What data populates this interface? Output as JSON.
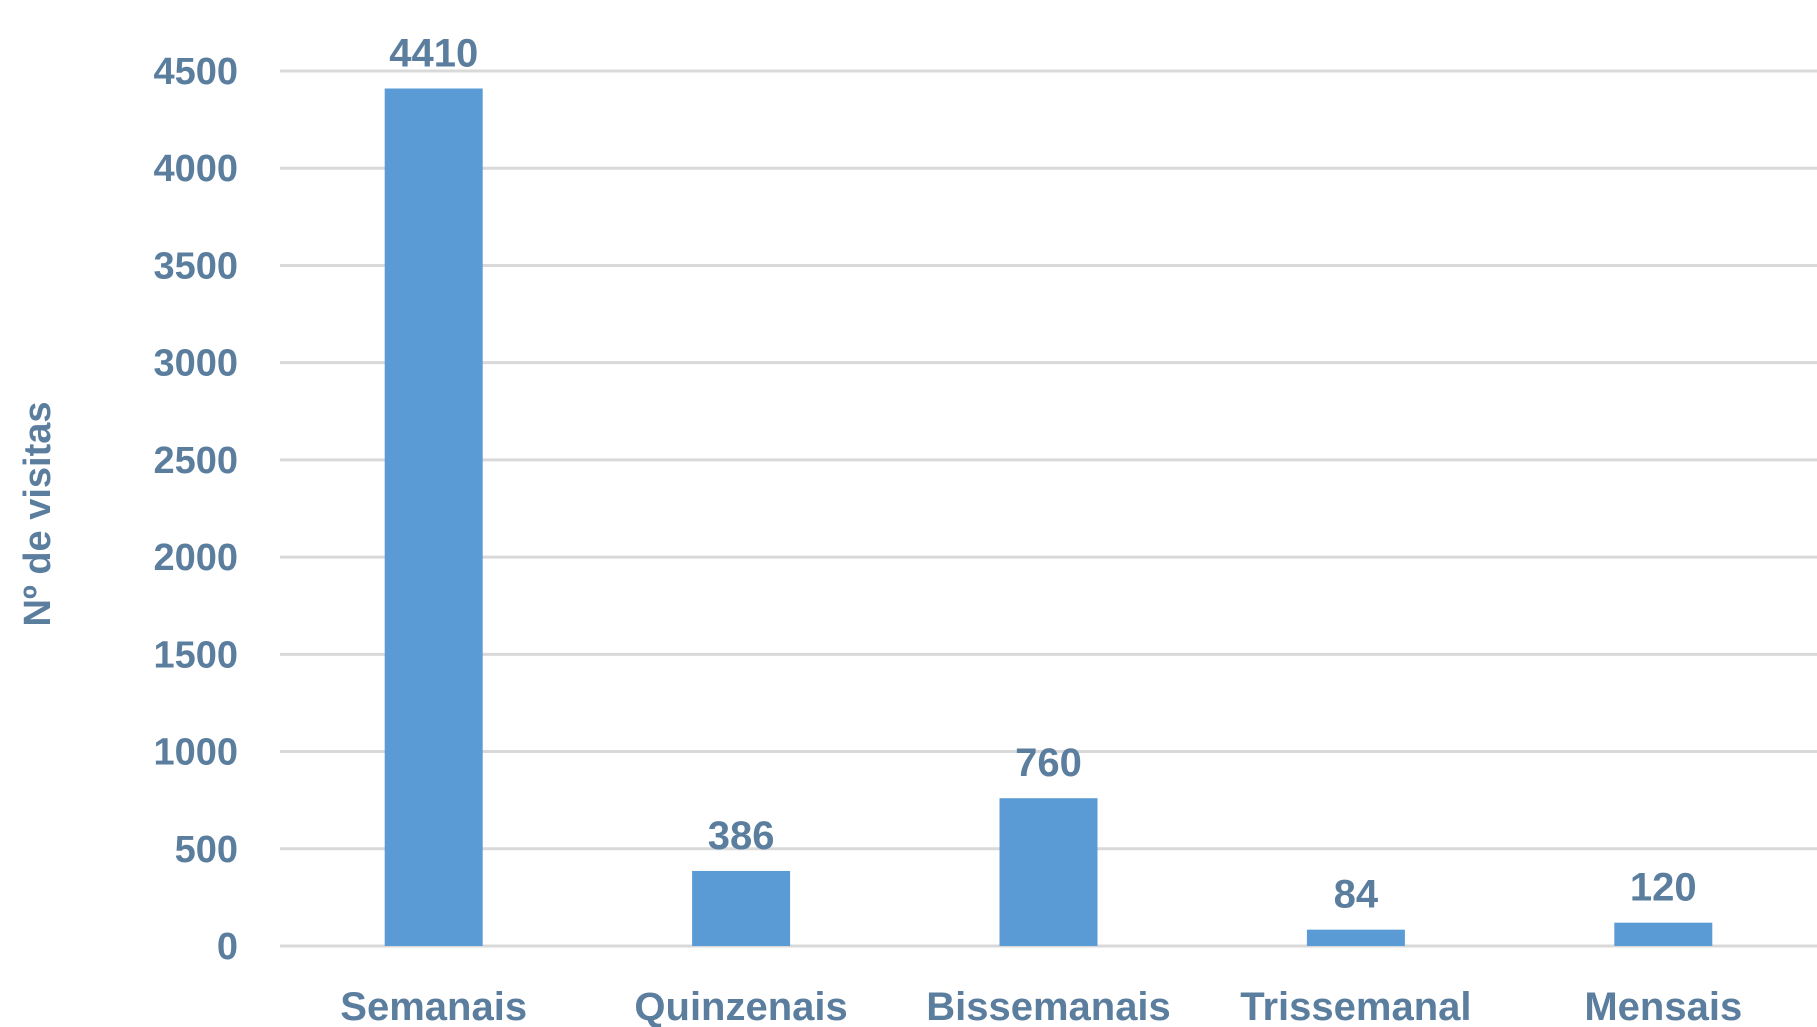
{
  "chart_data": {
    "type": "bar",
    "categories": [
      "Semanais",
      "Quinzenais",
      "Bissemanais",
      "Trissemanal",
      "Mensais"
    ],
    "values": [
      4410,
      386,
      760,
      84,
      120
    ],
    "data_labels": [
      "4410",
      "386",
      "760",
      "84",
      "120"
    ],
    "ylabel": "Nº de visitas",
    "xlabel": "",
    "ylim": [
      0,
      4500
    ],
    "yticks": [
      0,
      500,
      1000,
      1500,
      2000,
      2500,
      3000,
      3500,
      4000,
      4500
    ],
    "ytick_labels": [
      "0",
      "500",
      "1000",
      "1500",
      "2000",
      "2500",
      "3000",
      "3500",
      "4000",
      "4500"
    ],
    "grid": true,
    "legend": "none",
    "colors": {
      "bar": "#5b9bd5",
      "text": "#5b7e9e",
      "grid": "#d9d9d9"
    }
  }
}
